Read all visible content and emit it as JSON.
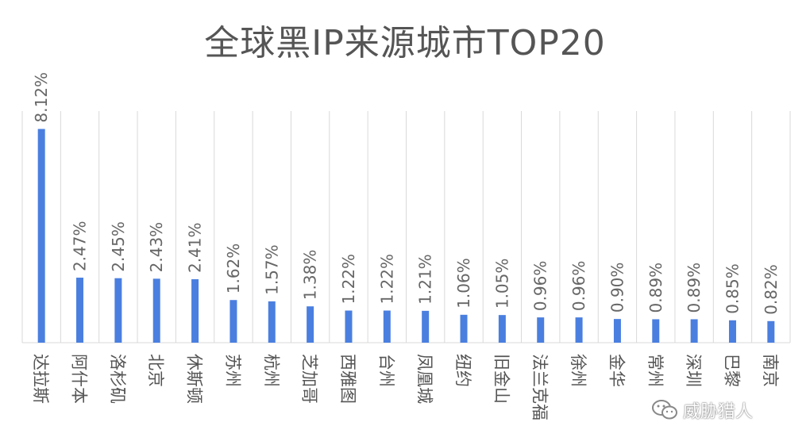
{
  "chart_data": {
    "type": "bar",
    "title": "全球黑IP来源城市TOP20",
    "categories": [
      "达拉斯",
      "阿什本",
      "洛杉矶",
      "北京",
      "休斯顿",
      "苏州",
      "杭州",
      "芝加哥",
      "西雅图",
      "台州",
      "凤凰城",
      "纽约",
      "旧金山",
      "法兰克福",
      "徐州",
      "金华",
      "常州",
      "深圳",
      "巴黎",
      "南京"
    ],
    "values": [
      8.12,
      2.47,
      2.45,
      2.43,
      2.41,
      1.62,
      1.57,
      1.38,
      1.22,
      1.22,
      1.21,
      1.06,
      1.05,
      0.96,
      0.96,
      0.9,
      0.89,
      0.89,
      0.85,
      0.82
    ],
    "value_labels": [
      "8.12%",
      "2.47%",
      "2.45%",
      "2.43%",
      "2.41%",
      "1.62%",
      "1.57%",
      "1.38%",
      "1.22%",
      "1.22%",
      "1.21%",
      "1.06%",
      "1.05%",
      "0.96%",
      "0.96%",
      "0.90%",
      "0.89%",
      "0.89%",
      "0.85%",
      "0.82%"
    ],
    "unit": "%",
    "bar_color": "#4a7fe0",
    "grid": "vertical separators",
    "legend": "none"
  },
  "watermark": {
    "text": "威胁猎人",
    "icon": "wechat-icon"
  }
}
